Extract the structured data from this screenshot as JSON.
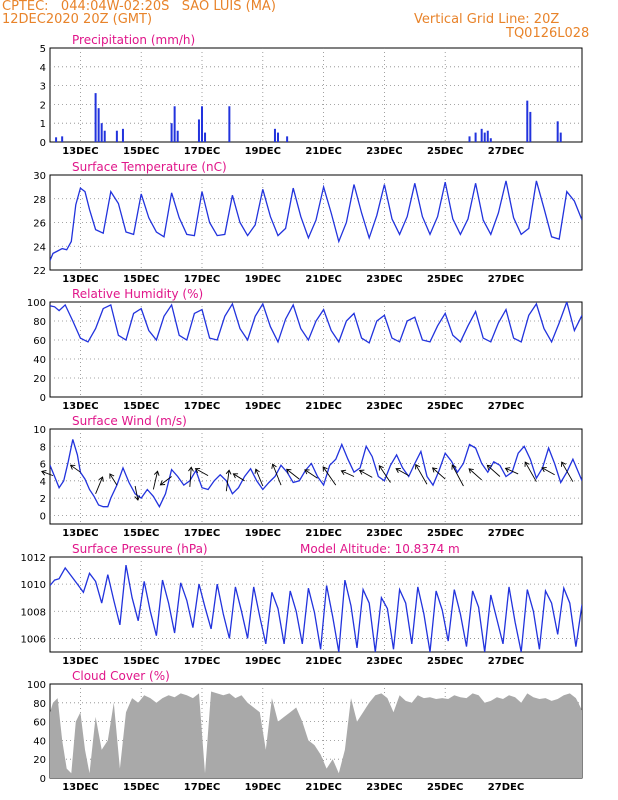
{
  "header": {
    "line1_left": "CPTEC:   044:04W-02:20S   SAO LUIS (MA)",
    "line2_left": "12DEC2020 20Z (GMT)",
    "line2_right": "Vertical Grid Line: 20Z",
    "line3_right": "TQ0126L028"
  },
  "colors": {
    "header": "#e8832a",
    "title": "#e0168a",
    "line": "#2233dd",
    "bar": "#2233dd",
    "cloud": "#a9a9a9",
    "wind_arrow": "#000000"
  },
  "x_ticks": [
    "13DEC",
    "15DEC",
    "17DEC",
    "19DEC",
    "21DEC",
    "23DEC",
    "25DEC",
    "27DEC"
  ],
  "chart_data": [
    {
      "type": "bar",
      "title": "Precipitation (mm/h)",
      "ylim": [
        0,
        5
      ],
      "yticks": [
        0,
        1,
        2,
        3,
        4,
        5
      ],
      "events": [
        [
          0.2,
          0.25
        ],
        [
          0.4,
          0.3
        ],
        [
          1.5,
          2.6
        ],
        [
          1.6,
          1.8
        ],
        [
          1.7,
          1.0
        ],
        [
          1.8,
          0.6
        ],
        [
          2.2,
          0.6
        ],
        [
          2.4,
          0.7
        ],
        [
          4.0,
          1.0
        ],
        [
          4.1,
          1.9
        ],
        [
          4.2,
          0.6
        ],
        [
          4.9,
          1.2
        ],
        [
          5.0,
          1.9
        ],
        [
          5.1,
          0.5
        ],
        [
          5.9,
          1.9
        ],
        [
          7.4,
          0.7
        ],
        [
          7.5,
          0.5
        ],
        [
          7.8,
          0.3
        ],
        [
          13.8,
          0.3
        ],
        [
          14.0,
          0.5
        ],
        [
          14.2,
          0.7
        ],
        [
          14.3,
          0.5
        ],
        [
          14.4,
          0.6
        ],
        [
          14.5,
          0.2
        ],
        [
          15.7,
          2.2
        ],
        [
          15.8,
          1.6
        ],
        [
          16.7,
          1.1
        ],
        [
          16.8,
          0.5
        ]
      ]
    },
    {
      "type": "line",
      "title": "Surface Temperature (nC)",
      "ylim": [
        22,
        30
      ],
      "yticks": [
        22,
        24,
        26,
        28,
        30
      ],
      "series_key": "temp"
    },
    {
      "type": "line",
      "title": "Relative Humidity (%)",
      "ylim": [
        0,
        100
      ],
      "yticks": [
        0,
        20,
        40,
        60,
        80,
        100
      ],
      "series_key": "rh"
    },
    {
      "type": "line",
      "title": "Surface Wind (m/s)",
      "ylim": [
        -1,
        10
      ],
      "yticks": [
        0,
        2,
        4,
        6,
        8,
        10
      ],
      "series_key": "wind"
    },
    {
      "type": "line",
      "title": "Surface Pressure (hPa)",
      "annotation": "Model Altitude: 10.8374 m",
      "ylim": [
        1005,
        1012
      ],
      "yticks": [
        1006,
        1008,
        1010,
        1012
      ],
      "series_key": "pres"
    },
    {
      "type": "area",
      "title": "Cloud Cover (%)",
      "ylim": [
        0,
        100
      ],
      "yticks": [
        0,
        20,
        40,
        60,
        80,
        100
      ],
      "series_key": "cloud"
    }
  ],
  "series": {
    "temp": {
      "x": [
        0,
        0.1,
        0.25,
        0.4,
        0.55,
        0.7,
        0.85,
        1.0,
        1.15,
        1.3,
        1.5,
        1.75,
        2.0,
        2.25,
        2.5,
        2.75,
        3.0,
        3.25,
        3.5,
        3.75,
        4.0,
        4.25,
        4.5,
        4.75,
        5.0,
        5.25,
        5.5,
        5.75,
        6.0,
        6.25,
        6.5,
        6.75,
        7.0,
        7.25,
        7.5,
        7.75,
        8.0,
        8.25,
        8.5,
        8.75,
        9.0,
        9.25,
        9.5,
        9.75,
        10.0,
        10.25,
        10.5,
        10.75,
        11.0,
        11.25,
        11.5,
        11.75,
        12.0,
        12.25,
        12.5,
        12.75,
        13.0,
        13.25,
        13.5,
        13.75,
        14.0,
        14.25,
        14.5,
        14.75,
        15.0,
        15.25,
        15.5,
        15.75,
        16.0,
        16.25,
        16.5,
        16.75,
        17.0,
        17.25,
        17.5
      ],
      "y": [
        22.8,
        23.4,
        23.6,
        23.8,
        23.7,
        24.4,
        27.5,
        28.9,
        28.6,
        27.1,
        25.4,
        25.1,
        28.6,
        27.6,
        25.2,
        25.0,
        28.4,
        26.4,
        25.2,
        24.8,
        28.5,
        26.4,
        25.0,
        24.9,
        28.6,
        26.0,
        24.9,
        25.0,
        28.3,
        26.0,
        24.9,
        25.8,
        28.8,
        26.5,
        24.9,
        25.5,
        28.9,
        26.5,
        24.7,
        26.2,
        29.0,
        26.8,
        24.4,
        26.0,
        29.2,
        26.8,
        24.7,
        26.6,
        29.2,
        26.3,
        25.0,
        26.5,
        29.3,
        26.5,
        25.0,
        26.5,
        29.4,
        26.3,
        25.0,
        26.3,
        29.3,
        26.2,
        25.0,
        26.8,
        29.5,
        26.4,
        25.0,
        25.5,
        29.5,
        27.2,
        24.8,
        24.6,
        28.6,
        27.8,
        26.2
      ]
    },
    "rh": {
      "x": [
        0,
        0.15,
        0.3,
        0.5,
        0.75,
        1.0,
        1.25,
        1.5,
        1.75,
        2.0,
        2.25,
        2.5,
        2.75,
        3.0,
        3.25,
        3.5,
        3.75,
        4.0,
        4.25,
        4.5,
        4.75,
        5.0,
        5.25,
        5.5,
        5.75,
        6.0,
        6.25,
        6.5,
        6.75,
        7.0,
        7.25,
        7.5,
        7.75,
        8.0,
        8.25,
        8.5,
        8.75,
        9.0,
        9.25,
        9.5,
        9.75,
        10.0,
        10.25,
        10.5,
        10.75,
        11.0,
        11.25,
        11.5,
        11.75,
        12.0,
        12.25,
        12.5,
        12.75,
        13.0,
        13.25,
        13.5,
        13.75,
        14.0,
        14.25,
        14.5,
        14.75,
        15.0,
        15.25,
        15.5,
        15.75,
        16.0,
        16.25,
        16.5,
        16.75,
        17.0,
        17.25,
        17.5
      ],
      "y": [
        96,
        95,
        91,
        97,
        80,
        62,
        58,
        72,
        93,
        97,
        65,
        60,
        88,
        93,
        70,
        60,
        85,
        97,
        65,
        60,
        88,
        92,
        62,
        60,
        85,
        98,
        72,
        60,
        85,
        98,
        74,
        58,
        82,
        97,
        72,
        60,
        80,
        92,
        70,
        58,
        80,
        88,
        62,
        57,
        80,
        86,
        62,
        58,
        80,
        84,
        60,
        58,
        75,
        88,
        65,
        58,
        75,
        90,
        62,
        58,
        78,
        92,
        62,
        58,
        86,
        98,
        72,
        58,
        78,
        100,
        70,
        86
      ]
    },
    "wind": {
      "x": [
        0,
        0.15,
        0.3,
        0.45,
        0.6,
        0.75,
        0.9,
        1.0,
        1.15,
        1.3,
        1.45,
        1.6,
        1.75,
        1.9,
        2.0,
        2.2,
        2.4,
        2.6,
        2.8,
        3.0,
        3.2,
        3.4,
        3.6,
        3.8,
        4.0,
        4.2,
        4.4,
        4.6,
        4.8,
        5.0,
        5.2,
        5.4,
        5.6,
        5.8,
        6.0,
        6.2,
        6.4,
        6.6,
        6.8,
        7.0,
        7.2,
        7.4,
        7.6,
        7.8,
        8.0,
        8.2,
        8.4,
        8.6,
        8.8,
        9.0,
        9.2,
        9.4,
        9.6,
        9.8,
        10.0,
        10.2,
        10.4,
        10.6,
        10.8,
        11.0,
        11.2,
        11.4,
        11.6,
        11.8,
        12.0,
        12.2,
        12.4,
        12.6,
        12.8,
        13.0,
        13.2,
        13.4,
        13.6,
        13.8,
        14.0,
        14.2,
        14.4,
        14.6,
        14.8,
        15.0,
        15.2,
        15.4,
        15.6,
        15.8,
        16.0,
        16.2,
        16.4,
        16.6,
        16.8,
        17.0,
        17.2,
        17.5
      ],
      "y": [
        5.8,
        4.5,
        3.2,
        4.0,
        6.2,
        8.8,
        7.0,
        5.0,
        4.2,
        3.0,
        2.2,
        1.2,
        1.0,
        1.0,
        2.0,
        3.5,
        5.5,
        3.8,
        2.5,
        2.0,
        3.0,
        2.2,
        1.0,
        2.5,
        5.3,
        4.5,
        3.5,
        4.0,
        5.2,
        3.2,
        3.0,
        4.0,
        4.7,
        4.0,
        2.5,
        3.2,
        4.5,
        5.4,
        4.0,
        3.0,
        3.8,
        4.5,
        5.8,
        5.0,
        3.8,
        4.0,
        5.2,
        6.0,
        4.5,
        3.5,
        5.8,
        6.5,
        8.2,
        6.5,
        5.0,
        5.5,
        8.0,
        6.8,
        4.5,
        4.0,
        5.8,
        7.0,
        5.5,
        4.5,
        6.0,
        7.4,
        4.5,
        3.5,
        5.2,
        7.2,
        6.3,
        5.0,
        6.0,
        8.2,
        7.8,
        6.0,
        5.0,
        6.2,
        5.8,
        4.5,
        5.0,
        7.2,
        8.0,
        6.5,
        4.3,
        5.5,
        7.8,
        6.0,
        3.8,
        5.0,
        6.5,
        4.0
      ]
    },
    "arrows": {
      "x": [
        0.1,
        1.0,
        1.5,
        2.2,
        2.8,
        3.4,
        4.0,
        4.6,
        5.2,
        5.8,
        6.4,
        7.0,
        7.6,
        8.2,
        8.8,
        9.4,
        10.0,
        10.6,
        11.2,
        11.8,
        12.4,
        13.0,
        13.6,
        14.2,
        14.8,
        15.4,
        16.0,
        16.6,
        17.2
      ],
      "y": [
        4.6,
        5.0,
        2.5,
        3.5,
        3.4,
        3.0,
        4.5,
        3.3,
        4.6,
        2.8,
        4.0,
        3.4,
        3.5,
        4.2,
        4.3,
        3.5,
        4.5,
        4.4,
        3.8,
        4.6,
        3.6,
        4.2,
        3.4,
        4.1,
        4.5,
        4.8,
        3.9,
        4.7,
        3.9
      ],
      "dx": [
        -0.8,
        -0.7,
        0.5,
        -0.5,
        0.2,
        0.3,
        -0.8,
        0.1,
        -0.9,
        0.2,
        -0.8,
        -0.5,
        -0.6,
        -0.9,
        -0.9,
        -0.9,
        -0.9,
        -0.9,
        -0.8,
        -0.9,
        -0.8,
        -0.9,
        -0.8,
        -0.9,
        -0.9,
        -0.9,
        -0.8,
        -0.9,
        -0.8
      ],
      "dy": [
        0.3,
        0.5,
        1.2,
        0.8,
        -1.0,
        1.3,
        -0.6,
        1.4,
        0.5,
        1.5,
        0.5,
        1.2,
        1.5,
        0.7,
        0.6,
        1.3,
        0.4,
        0.5,
        1.2,
        0.5,
        1.4,
        0.8,
        1.5,
        0.8,
        0.8,
        0.4,
        1.4,
        0.5,
        1.4
      ]
    },
    "pres": {
      "x": [
        0,
        0.15,
        0.3,
        0.5,
        0.7,
        0.9,
        1.1,
        1.3,
        1.5,
        1.7,
        1.9,
        2.1,
        2.3,
        2.5,
        2.7,
        2.9,
        3.1,
        3.3,
        3.5,
        3.7,
        3.9,
        4.1,
        4.3,
        4.5,
        4.7,
        4.9,
        5.1,
        5.3,
        5.5,
        5.7,
        5.9,
        6.1,
        6.3,
        6.5,
        6.7,
        6.9,
        7.1,
        7.3,
        7.5,
        7.7,
        7.9,
        8.1,
        8.3,
        8.5,
        8.7,
        8.9,
        9.1,
        9.3,
        9.5,
        9.7,
        9.9,
        10.1,
        10.3,
        10.5,
        10.7,
        10.9,
        11.1,
        11.3,
        11.5,
        11.7,
        11.9,
        12.1,
        12.3,
        12.5,
        12.7,
        12.9,
        13.1,
        13.3,
        13.5,
        13.7,
        13.9,
        14.1,
        14.3,
        14.5,
        14.7,
        14.9,
        15.1,
        15.3,
        15.5,
        15.7,
        15.9,
        16.1,
        16.3,
        16.5,
        16.7,
        16.9,
        17.1,
        17.3,
        17.5
      ],
      "y": [
        1009.9,
        1010.3,
        1010.4,
        1011.2,
        1010.6,
        1010.0,
        1009.4,
        1010.8,
        1010.2,
        1008.6,
        1010.7,
        1008.8,
        1007.0,
        1011.4,
        1009.0,
        1007.3,
        1010.2,
        1008.0,
        1006.2,
        1010.3,
        1008.6,
        1006.4,
        1010.1,
        1008.8,
        1006.8,
        1010.0,
        1008.3,
        1006.7,
        1010.0,
        1007.8,
        1006.0,
        1009.8,
        1008.0,
        1006.0,
        1009.8,
        1007.6,
        1005.6,
        1009.4,
        1008.2,
        1005.6,
        1009.5,
        1008.0,
        1005.6,
        1009.7,
        1007.9,
        1005.2,
        1009.9,
        1007.6,
        1005.0,
        1010.3,
        1008.4,
        1005.3,
        1009.6,
        1008.6,
        1005.0,
        1009.0,
        1008.2,
        1005.2,
        1009.6,
        1008.6,
        1005.6,
        1009.8,
        1007.8,
        1005.0,
        1009.5,
        1008.1,
        1005.8,
        1009.6,
        1007.8,
        1005.4,
        1009.5,
        1008.3,
        1005.0,
        1009.2,
        1007.4,
        1005.6,
        1009.8,
        1007.2,
        1005.0,
        1009.6,
        1008.0,
        1005.2,
        1009.5,
        1008.6,
        1006.3,
        1009.7,
        1008.6,
        1005.4,
        1008.5
      ]
    },
    "cloud": {
      "x": [
        0,
        0.1,
        0.25,
        0.4,
        0.55,
        0.7,
        0.85,
        1.0,
        1.15,
        1.3,
        1.5,
        1.7,
        1.9,
        2.1,
        2.3,
        2.5,
        2.7,
        2.9,
        3.1,
        3.3,
        3.5,
        3.7,
        3.9,
        4.1,
        4.3,
        4.5,
        4.7,
        4.9,
        5.1,
        5.3,
        5.5,
        5.7,
        5.9,
        6.1,
        6.3,
        6.5,
        6.7,
        6.9,
        7.1,
        7.3,
        7.5,
        7.7,
        7.9,
        8.1,
        8.3,
        8.5,
        8.7,
        8.9,
        9.1,
        9.3,
        9.5,
        9.7,
        9.9,
        10.1,
        10.3,
        10.5,
        10.7,
        10.9,
        11.1,
        11.3,
        11.5,
        11.7,
        11.9,
        12.1,
        12.3,
        12.5,
        12.7,
        12.9,
        13.1,
        13.3,
        13.5,
        13.7,
        13.9,
        14.1,
        14.3,
        14.5,
        14.7,
        14.9,
        15.1,
        15.3,
        15.5,
        15.7,
        15.9,
        16.1,
        16.3,
        16.5,
        16.7,
        16.9,
        17.1,
        17.3,
        17.5
      ],
      "y": [
        70,
        80,
        85,
        40,
        10,
        5,
        60,
        70,
        30,
        5,
        65,
        30,
        40,
        80,
        10,
        70,
        85,
        80,
        88,
        85,
        80,
        85,
        88,
        86,
        90,
        88,
        85,
        90,
        5,
        92,
        90,
        88,
        90,
        85,
        88,
        80,
        75,
        70,
        30,
        85,
        60,
        65,
        70,
        75,
        60,
        40,
        35,
        25,
        10,
        20,
        5,
        30,
        85,
        60,
        70,
        80,
        88,
        90,
        85,
        70,
        88,
        82,
        80,
        88,
        85,
        86,
        84,
        85,
        84,
        88,
        86,
        85,
        90,
        88,
        80,
        82,
        86,
        84,
        88,
        86,
        80,
        90,
        86,
        84,
        85,
        82,
        84,
        88,
        90,
        85,
        72
      ]
    }
  }
}
